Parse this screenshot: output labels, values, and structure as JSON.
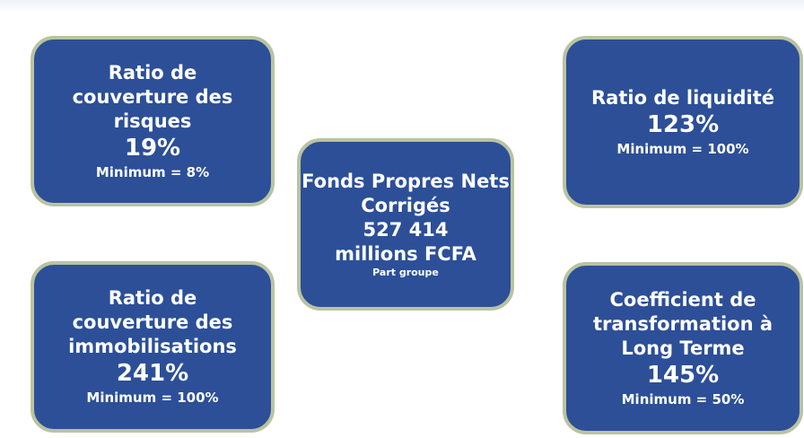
{
  "boxes": [
    {
      "title_lines": [
        "Ratio de",
        "couverture des",
        "risques"
      ],
      "value": "19%",
      "note": "Minimum = 8%"
    },
    {
      "title_lines": [
        "Fonds Propres Nets",
        "Corrigés",
        "527 414",
        "millions FCFA"
      ],
      "note": "Part groupe"
    },
    {
      "title_lines": [
        "Ratio de liquidité"
      ],
      "value": "123%",
      "note": "Minimum = 100%"
    },
    {
      "title_lines": [
        "Ratio de",
        "couverture des",
        "immobilisations"
      ],
      "value": "241%",
      "note": "Minimum = 100%"
    },
    {
      "title_lines": [
        "Coefficient de",
        "transformation à",
        "Long Terme"
      ],
      "value": "145%",
      "note": "Minimum = 50%"
    }
  ]
}
